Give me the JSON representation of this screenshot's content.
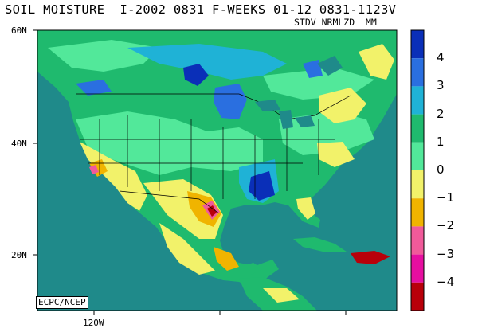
{
  "title": "SOIL MOISTURE  I-2002 0831 F-WEEKS 01-12 0831-1123V",
  "subtitle": "STDV NRMLZD  MM",
  "credit": "ECPC/NCEP",
  "lat_labels": [
    "60N",
    "40N",
    "20N"
  ],
  "lon_labels": [
    "120W"
  ],
  "ocean_color": "#1f8a8a",
  "legend": [
    {
      "label": "4",
      "color": "#0a2fb8"
    },
    {
      "label": "3",
      "color": "#2a6fe0"
    },
    {
      "label": "2",
      "color": "#1fb2d6"
    },
    {
      "label": "1",
      "color": "#1fba6e"
    },
    {
      "label": "0",
      "color": "#52e89a"
    },
    {
      "label": "−1",
      "color": "#f2f26a"
    },
    {
      "label": "−2",
      "color": "#f0b400"
    },
    {
      "label": "−3",
      "color": "#f05a9a"
    },
    {
      "label": "−4",
      "color": "#e60fa0"
    },
    {
      "label": "",
      "color": "#b8000a"
    }
  ]
}
